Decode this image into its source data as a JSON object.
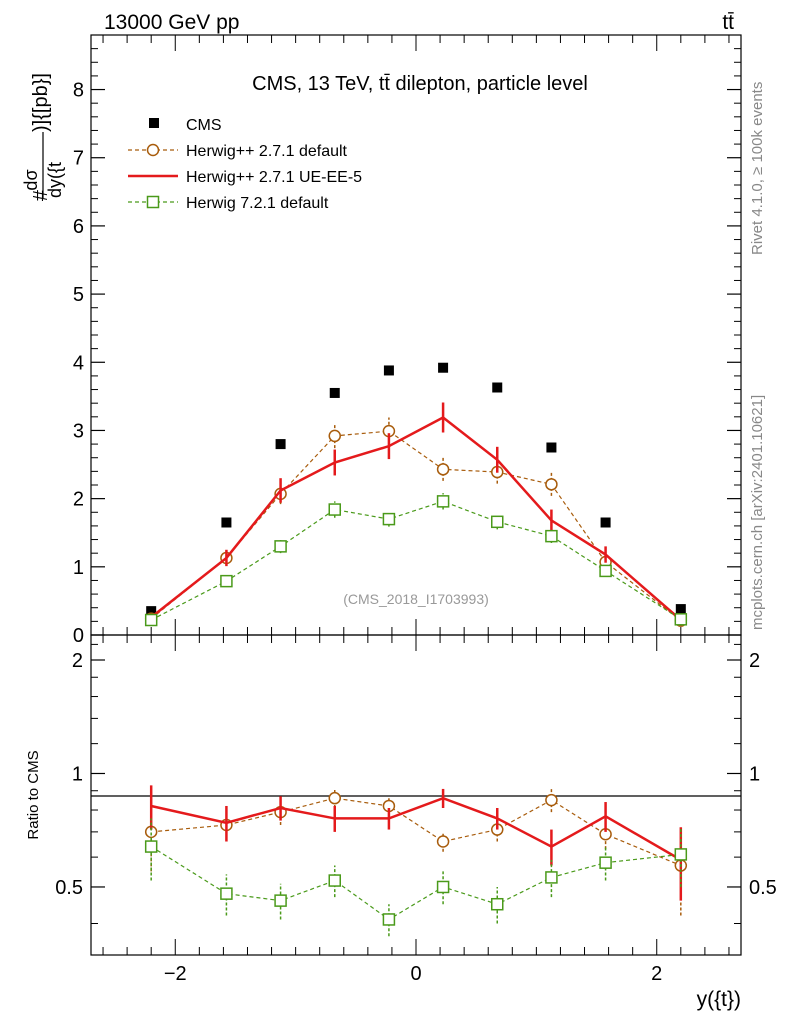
{
  "chart_data": [
    {
      "type": "line",
      "panel": "main",
      "header_left": "13000 GeV pp",
      "header_right": "tt̄",
      "title": "CMS, 13 TeV, tt̄ dilepton, particle level",
      "ylabel": "#dσ/dy({t})]{[pb}]",
      "ylabel_parts": {
        "hash": "#",
        "numerator": "dσ",
        "denominator": "dy({t",
        "tail": ")]{[pb}]"
      },
      "xlabel": "y({t})",
      "analysis_label": "(CMS_2018_I1703993)",
      "side_text_rivet": "Rivet 4.1.0, ≥ 100k events",
      "side_text_mcplots": "mcplots.cern.ch [arXiv:2401.10621]",
      "xlim": [
        -2.7,
        2.7
      ],
      "ylim": [
        0,
        8.8
      ],
      "x_ticks": [
        -2,
        0,
        2
      ],
      "x_tick_labels": [
        "−2",
        "0",
        "2"
      ],
      "y_ticks": [
        0,
        1,
        2,
        3,
        4,
        5,
        6,
        7,
        8
      ],
      "y_tick_labels": [
        "0",
        "1",
        "2",
        "3",
        "4",
        "5",
        "6",
        "7",
        "8"
      ],
      "x": [
        -2.2,
        -1.575,
        -1.125,
        -0.675,
        -0.225,
        0.225,
        0.675,
        1.125,
        1.575,
        2.2
      ],
      "series": [
        {
          "name": "CMS",
          "style": "data",
          "color": "#000000",
          "values": [
            0.35,
            1.65,
            2.8,
            3.55,
            3.88,
            3.92,
            3.63,
            2.75,
            1.65,
            0.38
          ],
          "errors": [
            0,
            0,
            0,
            0,
            0,
            0,
            0,
            0,
            0,
            0
          ]
        },
        {
          "name": "Herwig++ 2.7.1 default",
          "style": "dashed-circle",
          "color": "#a85c0c",
          "values": [
            0.24,
            1.13,
            2.07,
            2.92,
            2.99,
            2.43,
            2.39,
            2.21,
            1.07,
            0.21
          ],
          "errors": [
            0.05,
            0.1,
            0.15,
            0.18,
            0.2,
            0.17,
            0.17,
            0.17,
            0.1,
            0.04
          ]
        },
        {
          "name": "Herwig++ 2.7.1 UE-EE-5",
          "style": "solid",
          "color": "#e41a1c",
          "values": [
            0.26,
            1.13,
            2.12,
            2.53,
            2.77,
            3.19,
            2.57,
            1.68,
            1.18,
            0.22
          ],
          "errors": [
            0.05,
            0.12,
            0.18,
            0.19,
            0.19,
            0.22,
            0.19,
            0.16,
            0.12,
            0.05
          ]
        },
        {
          "name": "Herwig 7.2.1 default",
          "style": "dashed-square",
          "color": "#4a9a1a",
          "values": [
            0.22,
            0.79,
            1.3,
            1.84,
            1.7,
            1.96,
            1.66,
            1.45,
            0.94,
            0.23
          ],
          "errors": [
            0.04,
            0.07,
            0.1,
            0.12,
            0.11,
            0.12,
            0.11,
            0.1,
            0.08,
            0.04
          ]
        }
      ]
    },
    {
      "type": "line",
      "panel": "ratio",
      "ylabel": "Ratio to CMS",
      "reference_line": 1,
      "ylim": [
        0.33,
        2.33
      ],
      "y_ticks": [
        0.5,
        1,
        2
      ],
      "y_tick_labels": [
        "0.5",
        "1",
        "2"
      ],
      "x": [
        -2.2,
        -1.575,
        -1.125,
        -0.675,
        -0.225,
        0.225,
        0.675,
        1.125,
        1.575,
        2.2
      ],
      "series": [
        {
          "name": "Herwig++ 2.7.1 default",
          "style": "dashed-circle",
          "color": "#a85c0c",
          "values": [
            0.7,
            0.73,
            0.79,
            0.86,
            0.82,
            0.66,
            0.71,
            0.85,
            0.69,
            0.57
          ],
          "errors": [
            0.15,
            0.06,
            0.06,
            0.05,
            0.05,
            0.04,
            0.05,
            0.06,
            0.06,
            0.15
          ]
        },
        {
          "name": "Herwig++ 2.7.1 UE-EE-5",
          "style": "solid",
          "color": "#e41a1c",
          "values": [
            0.82,
            0.74,
            0.81,
            0.76,
            0.76,
            0.86,
            0.76,
            0.64,
            0.77,
            0.59
          ],
          "errors": [
            0.11,
            0.08,
            0.06,
            0.06,
            0.05,
            0.05,
            0.05,
            0.07,
            0.07,
            0.13
          ]
        },
        {
          "name": "Herwig 7.2.1 default",
          "style": "dashed-square",
          "color": "#4a9a1a",
          "values": [
            0.64,
            0.48,
            0.46,
            0.52,
            0.41,
            0.5,
            0.45,
            0.53,
            0.58,
            0.61
          ],
          "errors": [
            0.12,
            0.06,
            0.05,
            0.05,
            0.04,
            0.05,
            0.05,
            0.06,
            0.06,
            0.11
          ]
        }
      ]
    }
  ]
}
